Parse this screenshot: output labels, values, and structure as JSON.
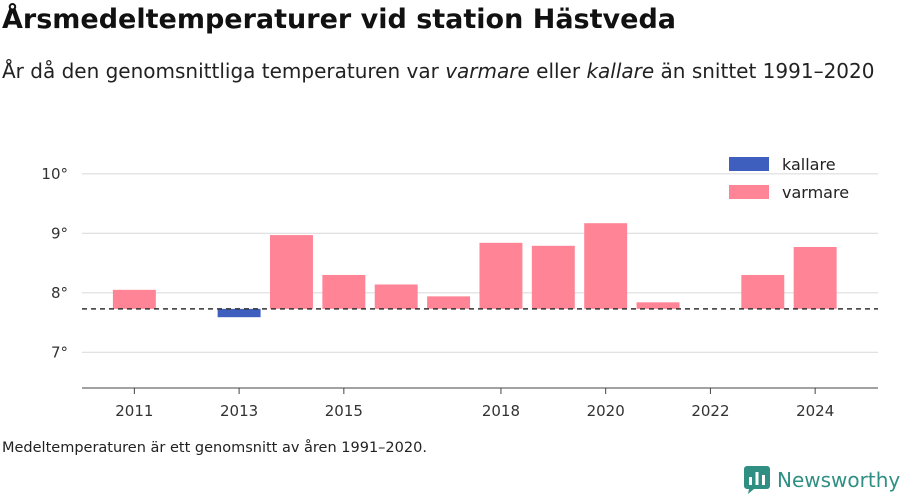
{
  "header": {
    "title": "Årsmedeltemperaturer vid station Hästveda",
    "subtitle_part1": "År då den genomsnittliga temperaturen var ",
    "subtitle_warm": "varmare",
    "subtitle_part2": " eller ",
    "subtitle_cold": "kallare",
    "subtitle_part3": " än snittet 1991–2020"
  },
  "footnote": "Medeltemperaturen är ett genomsnitt av åren 1991–2020.",
  "brand": {
    "name": "Newsworthy",
    "logo_icon": "bar-chart-logo-icon",
    "color": "#2f8f83"
  },
  "chart_data": {
    "type": "bar",
    "baseline": 7.73,
    "ylim": [
      6.4,
      10.4
    ],
    "xlim": [
      2010,
      2025.2
    ],
    "yticks": [
      7,
      8,
      9,
      10
    ],
    "ytick_labels": [
      "7°",
      "8°",
      "9°",
      "10°"
    ],
    "xticks": [
      2011,
      2013,
      2015,
      2018,
      2020,
      2022,
      2024
    ],
    "xtick_labels": [
      "2011",
      "2013",
      "2015",
      "2018",
      "2020",
      "2022",
      "2024"
    ],
    "grid": true,
    "legend_position": "top-right",
    "colors": {
      "kallare": "#3f5fbf",
      "varmare": "#ff8596"
    },
    "legend": [
      {
        "key": "kallare",
        "label": "kallare"
      },
      {
        "key": "varmare",
        "label": "varmare"
      }
    ],
    "series": [
      {
        "name": "kallare",
        "x": [
          2013
        ],
        "values": [
          7.59
        ]
      },
      {
        "name": "varmare",
        "x": [
          2011,
          2014,
          2015,
          2016,
          2017,
          2018,
          2019,
          2020,
          2021,
          2023,
          2024
        ],
        "values": [
          8.05,
          8.97,
          8.3,
          8.14,
          7.94,
          8.84,
          8.79,
          9.17,
          7.84,
          8.3,
          8.77
        ]
      }
    ]
  }
}
